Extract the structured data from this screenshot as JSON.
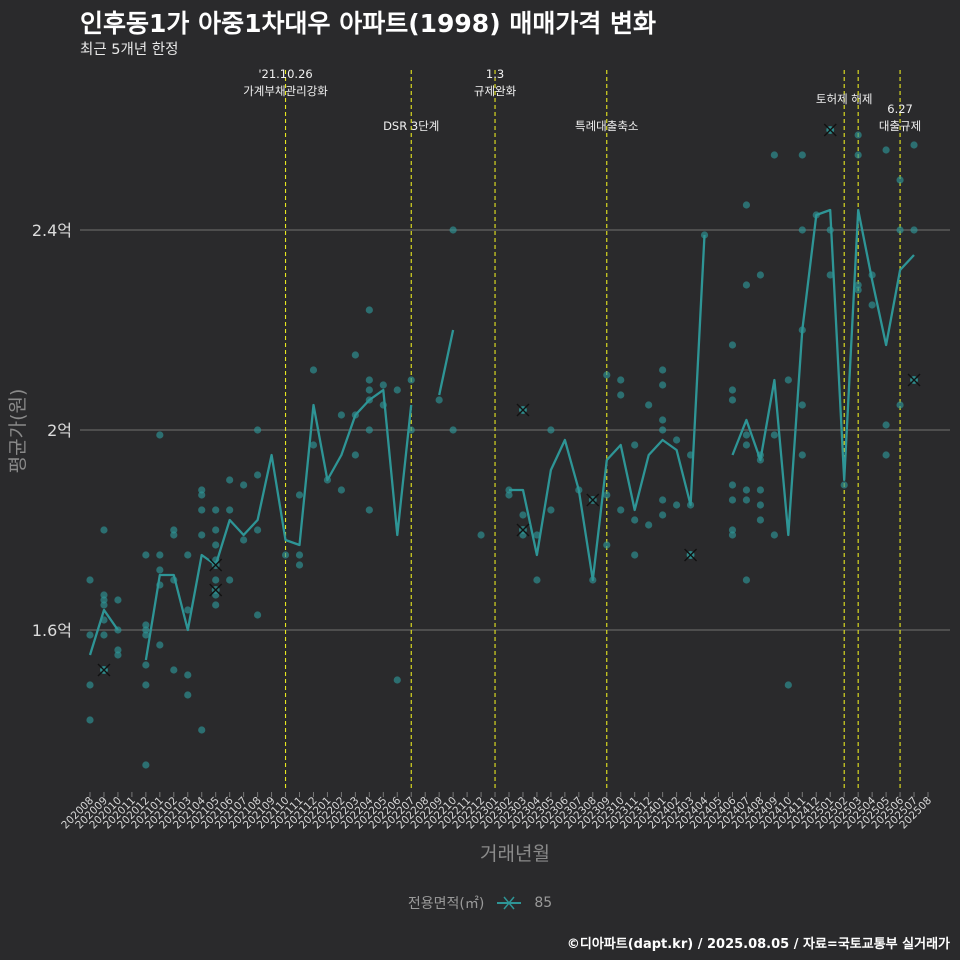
{
  "header": {
    "title": "인후동1가 아중1차대우 아파트(1998) 매매가격 변화",
    "subtitle": "최근 5개년 한정"
  },
  "footer": {
    "credit": "©디아파트(dapt.kr) / 2025.08.05 / 자료=국토교통부 실거래가"
  },
  "legend": {
    "title": "전용면적(㎡)",
    "item": "85"
  },
  "colors": {
    "background": "#2a2a2c",
    "series": "#2e9596",
    "event_line": "#e8e820",
    "grid": "#5a5a5a"
  },
  "chart_data": {
    "type": "line",
    "xlabel": "거래년월",
    "ylabel": "평균가(원)",
    "ytick_labels": [
      "1.6억",
      "2억",
      "2.4억"
    ],
    "yticks": [
      1.6,
      2.0,
      2.4
    ],
    "ylim": [
      1.28,
      2.72
    ],
    "y_unit": "억원",
    "categories": [
      "202008",
      "202009",
      "202010",
      "202011",
      "202012",
      "202101",
      "202102",
      "202103",
      "202104",
      "202105",
      "202106",
      "202107",
      "202108",
      "202109",
      "202110",
      "202111",
      "202112",
      "202201",
      "202202",
      "202203",
      "202204",
      "202205",
      "202206",
      "202207",
      "202208",
      "202209",
      "202210",
      "202211",
      "202212",
      "202301",
      "202302",
      "202303",
      "202304",
      "202305",
      "202306",
      "202307",
      "202308",
      "202309",
      "202310",
      "202311",
      "202312",
      "202401",
      "202402",
      "202403",
      "202404",
      "202405",
      "202406",
      "202407",
      "202408",
      "202409",
      "202410",
      "202411",
      "202412",
      "202501",
      "202502",
      "202503",
      "202504",
      "202505",
      "202506",
      "202507",
      "202508"
    ],
    "series": [
      {
        "name": "85",
        "average": [
          1.55,
          1.64,
          1.6,
          null,
          1.54,
          1.71,
          1.71,
          1.6,
          1.75,
          1.73,
          1.82,
          1.79,
          1.82,
          1.95,
          1.78,
          1.77,
          2.05,
          1.9,
          1.95,
          2.03,
          2.06,
          2.08,
          1.79,
          2.05,
          null,
          2.07,
          2.2,
          null,
          null,
          null,
          1.88,
          1.88,
          1.75,
          1.92,
          1.98,
          1.88,
          1.7,
          1.94,
          1.97,
          1.84,
          1.95,
          1.98,
          1.96,
          1.85,
          2.39,
          null,
          1.95,
          2.02,
          1.94,
          2.1,
          1.79,
          2.2,
          2.43,
          2.44,
          1.9,
          2.44,
          2.3,
          2.17,
          2.32,
          2.35,
          null
        ],
        "transactions": [
          [
            "202008",
            1.7
          ],
          [
            "202008",
            1.59
          ],
          [
            "202008",
            1.49
          ],
          [
            "202008",
            1.42
          ],
          [
            "202009",
            1.52
          ],
          [
            "202009",
            1.65
          ],
          [
            "202009",
            1.66
          ],
          [
            "202009",
            1.67
          ],
          [
            "202009",
            1.59
          ],
          [
            "202009",
            1.8
          ],
          [
            "202009",
            1.62
          ],
          [
            "202010",
            1.55
          ],
          [
            "202010",
            1.66
          ],
          [
            "202010",
            1.56
          ],
          [
            "202010",
            1.6
          ],
          [
            "202012",
            1.6
          ],
          [
            "202012",
            1.59
          ],
          [
            "202012",
            1.75
          ],
          [
            "202012",
            1.53
          ],
          [
            "202012",
            1.49
          ],
          [
            "202012",
            1.33
          ],
          [
            "202012",
            1.61
          ],
          [
            "202101",
            1.57
          ],
          [
            "202101",
            1.99
          ],
          [
            "202101",
            1.69
          ],
          [
            "202101",
            1.72
          ],
          [
            "202101",
            1.75
          ],
          [
            "202102",
            1.79
          ],
          [
            "202102",
            1.8
          ],
          [
            "202102",
            1.52
          ],
          [
            "202102",
            1.7
          ],
          [
            "202103",
            1.64
          ],
          [
            "202103",
            1.51
          ],
          [
            "202103",
            1.75
          ],
          [
            "202103",
            1.47
          ],
          [
            "202104",
            1.88
          ],
          [
            "202104",
            1.4
          ],
          [
            "202104",
            1.87
          ],
          [
            "202104",
            1.84
          ],
          [
            "202104",
            1.79
          ],
          [
            "202105",
            1.8
          ],
          [
            "202105",
            1.84
          ],
          [
            "202105",
            1.77
          ],
          [
            "202105",
            1.74
          ],
          [
            "202105",
            1.65
          ],
          [
            "202105",
            1.7
          ],
          [
            "202105",
            1.67
          ],
          [
            "202106",
            1.7
          ],
          [
            "202106",
            1.9
          ],
          [
            "202106",
            1.84
          ],
          [
            "202107",
            1.78
          ],
          [
            "202107",
            1.89
          ],
          [
            "202108",
            1.8
          ],
          [
            "202108",
            1.63
          ],
          [
            "202108",
            1.91
          ],
          [
            "202108",
            2.0
          ],
          [
            "202110",
            1.75
          ],
          [
            "202111",
            1.75
          ],
          [
            "202111",
            1.73
          ],
          [
            "202111",
            1.87
          ],
          [
            "202112",
            1.97
          ],
          [
            "202112",
            2.12
          ],
          [
            "202201",
            1.9
          ],
          [
            "202202",
            1.88
          ],
          [
            "202202",
            2.03
          ],
          [
            "202203",
            2.03
          ],
          [
            "202203",
            1.95
          ],
          [
            "202203",
            2.15
          ],
          [
            "202204",
            1.84
          ],
          [
            "202204",
            2.0
          ],
          [
            "202204",
            2.06
          ],
          [
            "202204",
            2.08
          ],
          [
            "202204",
            2.1
          ],
          [
            "202204",
            2.24
          ],
          [
            "202205",
            2.09
          ],
          [
            "202205",
            2.05
          ],
          [
            "202206",
            1.5
          ],
          [
            "202206",
            2.08
          ],
          [
            "202207",
            2.1
          ],
          [
            "202207",
            2.0
          ],
          [
            "202209",
            2.06
          ],
          [
            "202210",
            2.4
          ],
          [
            "202210",
            2.0
          ],
          [
            "202212",
            1.79
          ],
          [
            "202302",
            1.88
          ],
          [
            "202302",
            1.87
          ],
          [
            "202303",
            1.83
          ],
          [
            "202303",
            2.04
          ],
          [
            "202303",
            1.79
          ],
          [
            "202304",
            1.79
          ],
          [
            "202304",
            1.7
          ],
          [
            "202305",
            2.0
          ],
          [
            "202305",
            1.84
          ],
          [
            "202307",
            1.88
          ],
          [
            "202308",
            1.7
          ],
          [
            "202309",
            1.87
          ],
          [
            "202309",
            2.11
          ],
          [
            "202309",
            1.77
          ],
          [
            "202310",
            2.1
          ],
          [
            "202310",
            2.07
          ],
          [
            "202310",
            1.84
          ],
          [
            "202311",
            1.82
          ],
          [
            "202311",
            1.97
          ],
          [
            "202311",
            1.75
          ],
          [
            "202312",
            2.05
          ],
          [
            "202312",
            1.81
          ],
          [
            "202401",
            2.12
          ],
          [
            "202401",
            2.02
          ],
          [
            "202401",
            2.09
          ],
          [
            "202401",
            2.0
          ],
          [
            "202401",
            1.86
          ],
          [
            "202401",
            1.83
          ],
          [
            "202402",
            1.98
          ],
          [
            "202402",
            1.85
          ],
          [
            "202403",
            1.85
          ],
          [
            "202403",
            1.75
          ],
          [
            "202403",
            1.95
          ],
          [
            "202404",
            2.39
          ],
          [
            "202406",
            2.17
          ],
          [
            "202406",
            1.89
          ],
          [
            "202406",
            1.86
          ],
          [
            "202406",
            2.06
          ],
          [
            "202406",
            2.08
          ],
          [
            "202406",
            1.8
          ],
          [
            "202406",
            1.79
          ],
          [
            "202407",
            1.7
          ],
          [
            "202407",
            1.99
          ],
          [
            "202407",
            1.97
          ],
          [
            "202407",
            2.45
          ],
          [
            "202407",
            2.29
          ],
          [
            "202407",
            1.88
          ],
          [
            "202407",
            1.86
          ],
          [
            "202408",
            1.95
          ],
          [
            "202408",
            1.94
          ],
          [
            "202408",
            1.88
          ],
          [
            "202408",
            1.85
          ],
          [
            "202408",
            1.82
          ],
          [
            "202408",
            2.31
          ],
          [
            "202409",
            2.55
          ],
          [
            "202409",
            1.99
          ],
          [
            "202409",
            1.79
          ],
          [
            "202410",
            1.49
          ],
          [
            "202410",
            2.1
          ],
          [
            "202411",
            2.55
          ],
          [
            "202411",
            2.4
          ],
          [
            "202411",
            2.2
          ],
          [
            "202411",
            2.05
          ],
          [
            "202411",
            1.95
          ],
          [
            "202412",
            2.43
          ],
          [
            "202501",
            2.4
          ],
          [
            "202501",
            2.6
          ],
          [
            "202501",
            2.31
          ],
          [
            "202502",
            1.89
          ],
          [
            "202503",
            2.59
          ],
          [
            "202503",
            2.55
          ],
          [
            "202503",
            2.28
          ],
          [
            "202503",
            2.29
          ],
          [
            "202504",
            2.31
          ],
          [
            "202504",
            2.25
          ],
          [
            "202505",
            2.56
          ],
          [
            "202505",
            2.01
          ],
          [
            "202505",
            1.95
          ],
          [
            "202506",
            2.5
          ],
          [
            "202506",
            2.4
          ],
          [
            "202506",
            2.05
          ],
          [
            "202507",
            2.57
          ],
          [
            "202507",
            2.4
          ],
          [
            "202507",
            2.1
          ]
        ],
        "cancelled": [
          [
            "202009",
            1.52
          ],
          [
            "202105",
            1.68
          ],
          [
            "202105",
            1.73
          ],
          [
            "202303",
            2.04
          ],
          [
            "202303",
            1.8
          ],
          [
            "202308",
            1.86
          ],
          [
            "202403",
            1.75
          ],
          [
            "202501",
            2.6
          ],
          [
            "202507",
            2.1
          ]
        ]
      }
    ],
    "events": [
      {
        "at": "202110",
        "label_lines": [
          "'21.10.26",
          "가계부채관리강화"
        ],
        "row": 0
      },
      {
        "at": "202207",
        "label_lines": [
          "DSR 3단계"
        ],
        "row": 1
      },
      {
        "at": "202301",
        "label_lines": [
          "1.3",
          "규제완화"
        ],
        "row": 0
      },
      {
        "at": "202309",
        "label_lines": [
          "특례대출축소"
        ],
        "row": 1
      },
      {
        "at": "202502",
        "label_lines": [
          "토허제 해제"
        ],
        "row": 0
      },
      {
        "at": "202503",
        "label_lines": [],
        "row": 0
      },
      {
        "at": "202506",
        "label_lines": [
          "6.27",
          "대출규제"
        ],
        "row": 1
      }
    ],
    "grid": "horizontal-major",
    "legend_position": "bottom"
  }
}
